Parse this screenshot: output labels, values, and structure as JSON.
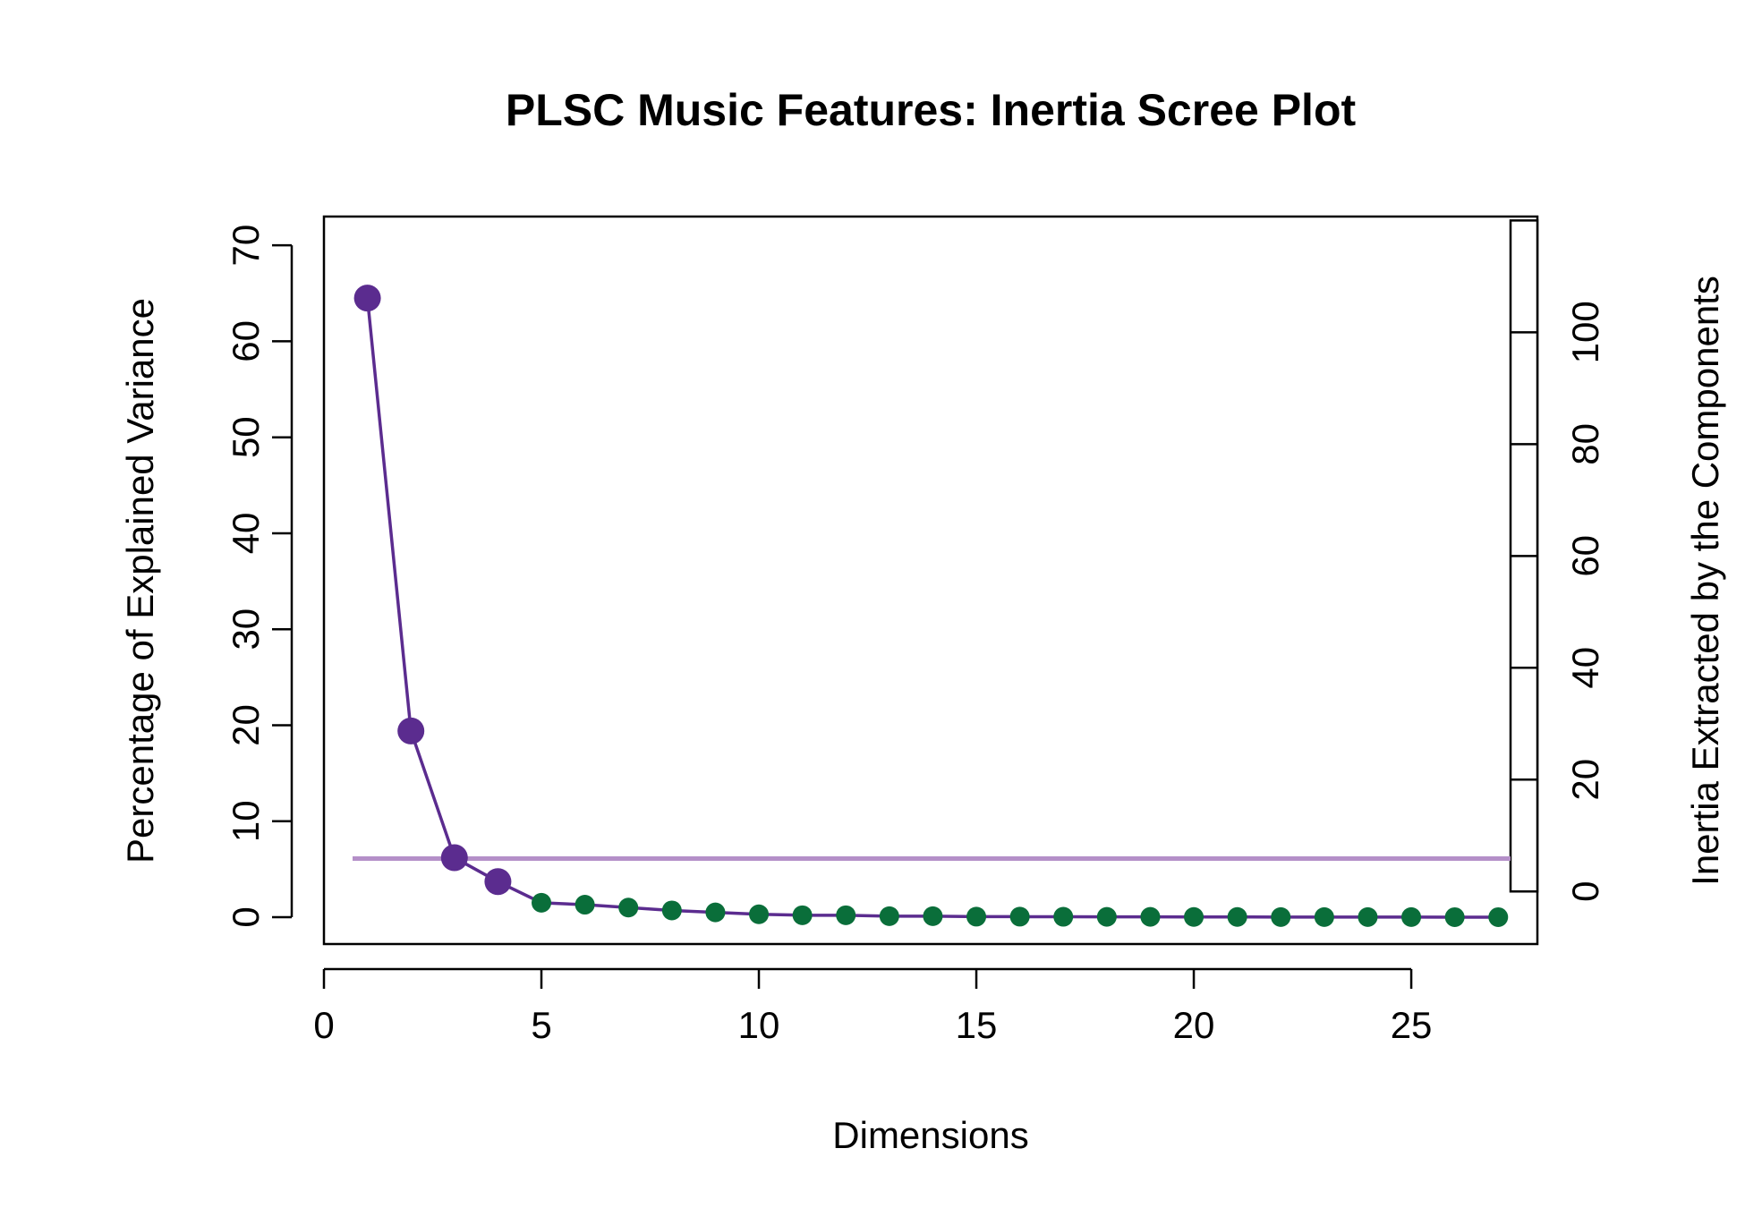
{
  "chart_data": {
    "type": "line",
    "title": "PLSC Music Features: Inertia Scree Plot",
    "xlabel": "Dimensions",
    "ylabel": "Percentage of Explained Variance",
    "ylabel_right": "Inertia Extracted by the Components",
    "xlim": [
      0,
      27.9
    ],
    "ylim": [
      -2.8,
      73
    ],
    "ylim_right": [
      -9.4,
      120.7
    ],
    "x_ticks": [
      0,
      5,
      10,
      15,
      20,
      25
    ],
    "y_ticks": [
      0,
      10,
      20,
      30,
      40,
      50,
      60,
      70
    ],
    "y_ticks_right": [
      0,
      20,
      40,
      60,
      80,
      100
    ],
    "grid": false,
    "right_axis_bar": {
      "min": 0,
      "max": 120,
      "fill": "#ffffff"
    },
    "threshold": {
      "value": 6.1,
      "color": "#b48fc8"
    },
    "colors": {
      "significant": "#5b2c8f",
      "nonsignificant": "#0a6e3a",
      "line": "#5b2c8f"
    },
    "x": [
      1,
      2,
      3,
      4,
      5,
      6,
      7,
      8,
      9,
      10,
      11,
      12,
      13,
      14,
      15,
      16,
      17,
      18,
      19,
      20,
      21,
      22,
      23,
      24,
      25,
      26,
      27
    ],
    "values": [
      64.5,
      19.4,
      6.2,
      3.7,
      1.5,
      1.3,
      1.0,
      0.7,
      0.5,
      0.3,
      0.2,
      0.2,
      0.1,
      0.1,
      0.05,
      0.05,
      0.04,
      0.03,
      0.03,
      0.02,
      0.02,
      0.01,
      0.01,
      0.01,
      0.01,
      0.0,
      0.0
    ],
    "significant_count": 4
  }
}
